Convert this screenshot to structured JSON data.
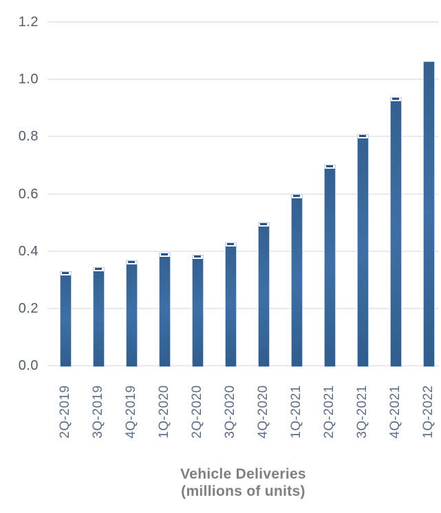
{
  "chart_data": {
    "type": "bar",
    "title": "Vehicle Deliveries",
    "subtitle": "(millions of units)",
    "categories": [
      "2Q-2019",
      "3Q-2019",
      "4Q-2019",
      "1Q-2020",
      "2Q-2020",
      "3Q-2020",
      "4Q-2020",
      "1Q-2021",
      "2Q-2021",
      "3Q-2021",
      "4Q-2021",
      "1Q-2022"
    ],
    "values": [
      0.33,
      0.345,
      0.367,
      0.395,
      0.387,
      0.43,
      0.499,
      0.598,
      0.703,
      0.808,
      0.937,
      1.062
    ],
    "error_caps": [
      true,
      true,
      true,
      true,
      true,
      true,
      true,
      true,
      true,
      true,
      true,
      false
    ],
    "ylim": [
      0,
      1.2
    ],
    "ytick_labels": [
      "1.2",
      "1.0",
      "0.8",
      "0.6",
      "0.4",
      "0.2",
      "0.0"
    ],
    "grid": "horizontal",
    "legend_position": "none",
    "colors": {
      "bar_top": "#34608f",
      "bar_mid": "#3e6fa6",
      "bar_bottom": "#305d8c",
      "bar_edge": "#bccee2",
      "error_cap": "#27538a",
      "gridline": "#e9e9e9",
      "ytick_text": "#515d69",
      "xtick_text": "#5d6e85",
      "title_text": "#7f7f7f"
    }
  }
}
